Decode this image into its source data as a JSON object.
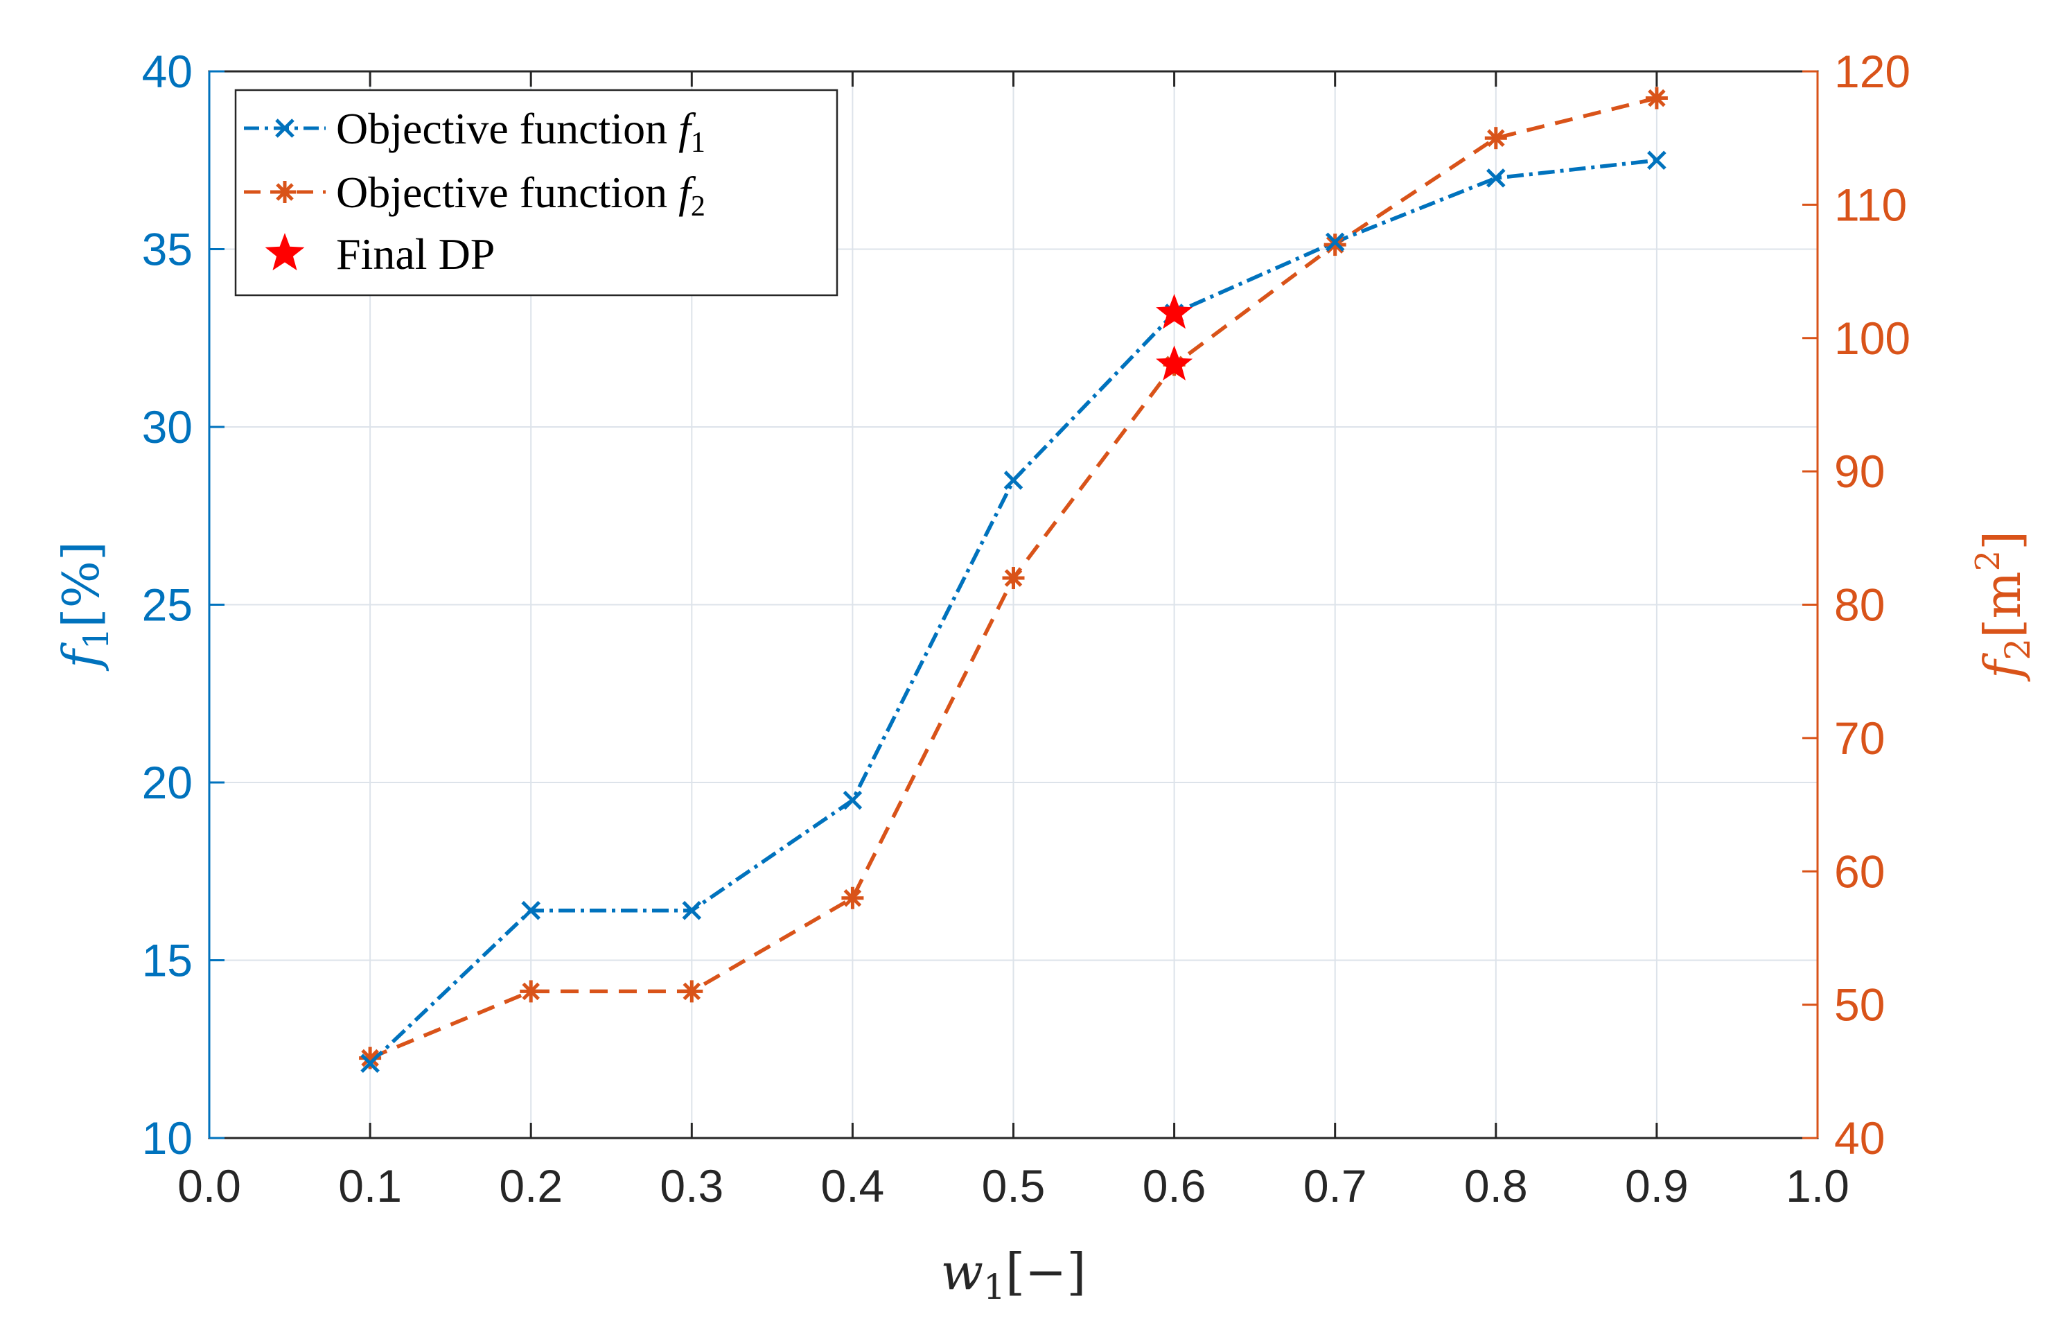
{
  "colors": {
    "f1": "#0072BD",
    "f2": "#D95319",
    "final": "#FF0000",
    "grid": "#DDE3EA",
    "axis": "#262626"
  },
  "icons": {
    "f1_marker": "x-marker-icon",
    "f2_marker": "asterisk-marker-icon",
    "final_marker": "star-marker-icon"
  },
  "chart_data": {
    "type": "line",
    "xlabel": "w",
    "xlabel_sub": "1",
    "xlabel_unit": "[−]",
    "x": [
      0.1,
      0.2,
      0.3,
      0.4,
      0.5,
      0.6,
      0.7,
      0.8,
      0.9
    ],
    "xlim": [
      0.0,
      1.0
    ],
    "xticks": [
      0.0,
      0.1,
      0.2,
      0.3,
      0.4,
      0.5,
      0.6,
      0.7,
      0.8,
      0.9,
      1.0
    ],
    "xtick_labels": [
      "0.0",
      "0.1",
      "0.2",
      "0.3",
      "0.4",
      "0.5",
      "0.6",
      "0.7",
      "0.8",
      "0.9",
      "1.0"
    ],
    "y_left": {
      "label": "f",
      "label_sub": "1",
      "label_unit": "[%]",
      "lim": [
        10,
        40
      ],
      "ticks": [
        10,
        15,
        20,
        25,
        30,
        35,
        40
      ],
      "tick_labels": [
        "10",
        "15",
        "20",
        "25",
        "30",
        "35",
        "40"
      ]
    },
    "y_right": {
      "label": "f",
      "label_sub": "2",
      "label_unit": "[m",
      "label_sup": "2",
      "label_close": "]",
      "lim": [
        40,
        120
      ],
      "ticks": [
        40,
        50,
        60,
        70,
        80,
        90,
        100,
        110,
        120
      ],
      "tick_labels": [
        "40",
        "50",
        "60",
        "70",
        "80",
        "90",
        "100",
        "110",
        "120"
      ]
    },
    "grid": true,
    "legend_position": "top-left",
    "series": [
      {
        "name": "Objective function f1",
        "legend_text": "Objective function",
        "legend_symbol": "f",
        "legend_sub": "1",
        "axis": "left",
        "style": "dash-dot",
        "marker": "x",
        "values": [
          12.1,
          16.4,
          16.4,
          19.5,
          28.5,
          33.2,
          35.2,
          37.0,
          37.5
        ]
      },
      {
        "name": "Objective function f2",
        "legend_text": "Objective function",
        "legend_symbol": "f",
        "legend_sub": "2",
        "axis": "right",
        "style": "dashed",
        "marker": "asterisk",
        "values": [
          46,
          51,
          51,
          58,
          82,
          98,
          107,
          115,
          118
        ]
      }
    ],
    "highlights": {
      "name": "Final DP",
      "legend_text": "Final DP",
      "marker": "star",
      "points": [
        {
          "x": 0.6,
          "axis": "left",
          "y": 33.2
        },
        {
          "x": 0.6,
          "axis": "right",
          "y": 98
        }
      ]
    }
  }
}
